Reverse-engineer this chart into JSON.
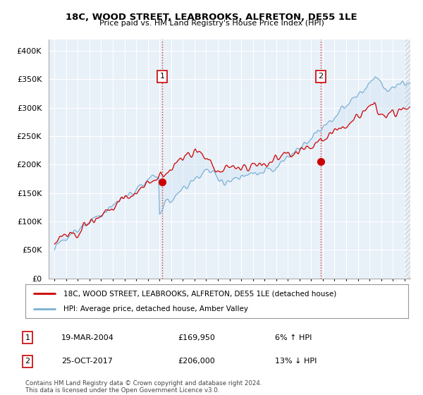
{
  "title": "18C, WOOD STREET, LEABROOKS, ALFRETON, DE55 1LE",
  "subtitle": "Price paid vs. HM Land Registry's House Price Index (HPI)",
  "legend_label_red": "18C, WOOD STREET, LEABROOKS, ALFRETON, DE55 1LE (detached house)",
  "legend_label_blue": "HPI: Average price, detached house, Amber Valley",
  "annotation1_date": "19-MAR-2004",
  "annotation1_price": "£169,950",
  "annotation1_hpi": "6% ↑ HPI",
  "annotation2_date": "25-OCT-2017",
  "annotation2_price": "£206,000",
  "annotation2_hpi": "13% ↓ HPI",
  "footer": "Contains HM Land Registry data © Crown copyright and database right 2024.\nThis data is licensed under the Open Government Licence v3.0.",
  "color_red": "#cc0000",
  "color_blue": "#7ab0d4",
  "color_fill": "#d6e8f5",
  "background_plot": "#e8f0f8",
  "background_white": "#ffffff",
  "grid_color": "#ffffff",
  "sale1_year": 2004.22,
  "sale1_price": 169950,
  "sale2_year": 2017.82,
  "sale2_price": 206000,
  "ylim_min": 0,
  "ylim_max": 420000,
  "yticks": [
    0,
    50000,
    100000,
    150000,
    200000,
    250000,
    300000,
    350000,
    400000
  ],
  "ytick_labels": [
    "£0",
    "£50K",
    "£100K",
    "£150K",
    "£200K",
    "£250K",
    "£300K",
    "£350K",
    "£400K"
  ],
  "xmin": 1995.0,
  "xmax": 2025.5
}
